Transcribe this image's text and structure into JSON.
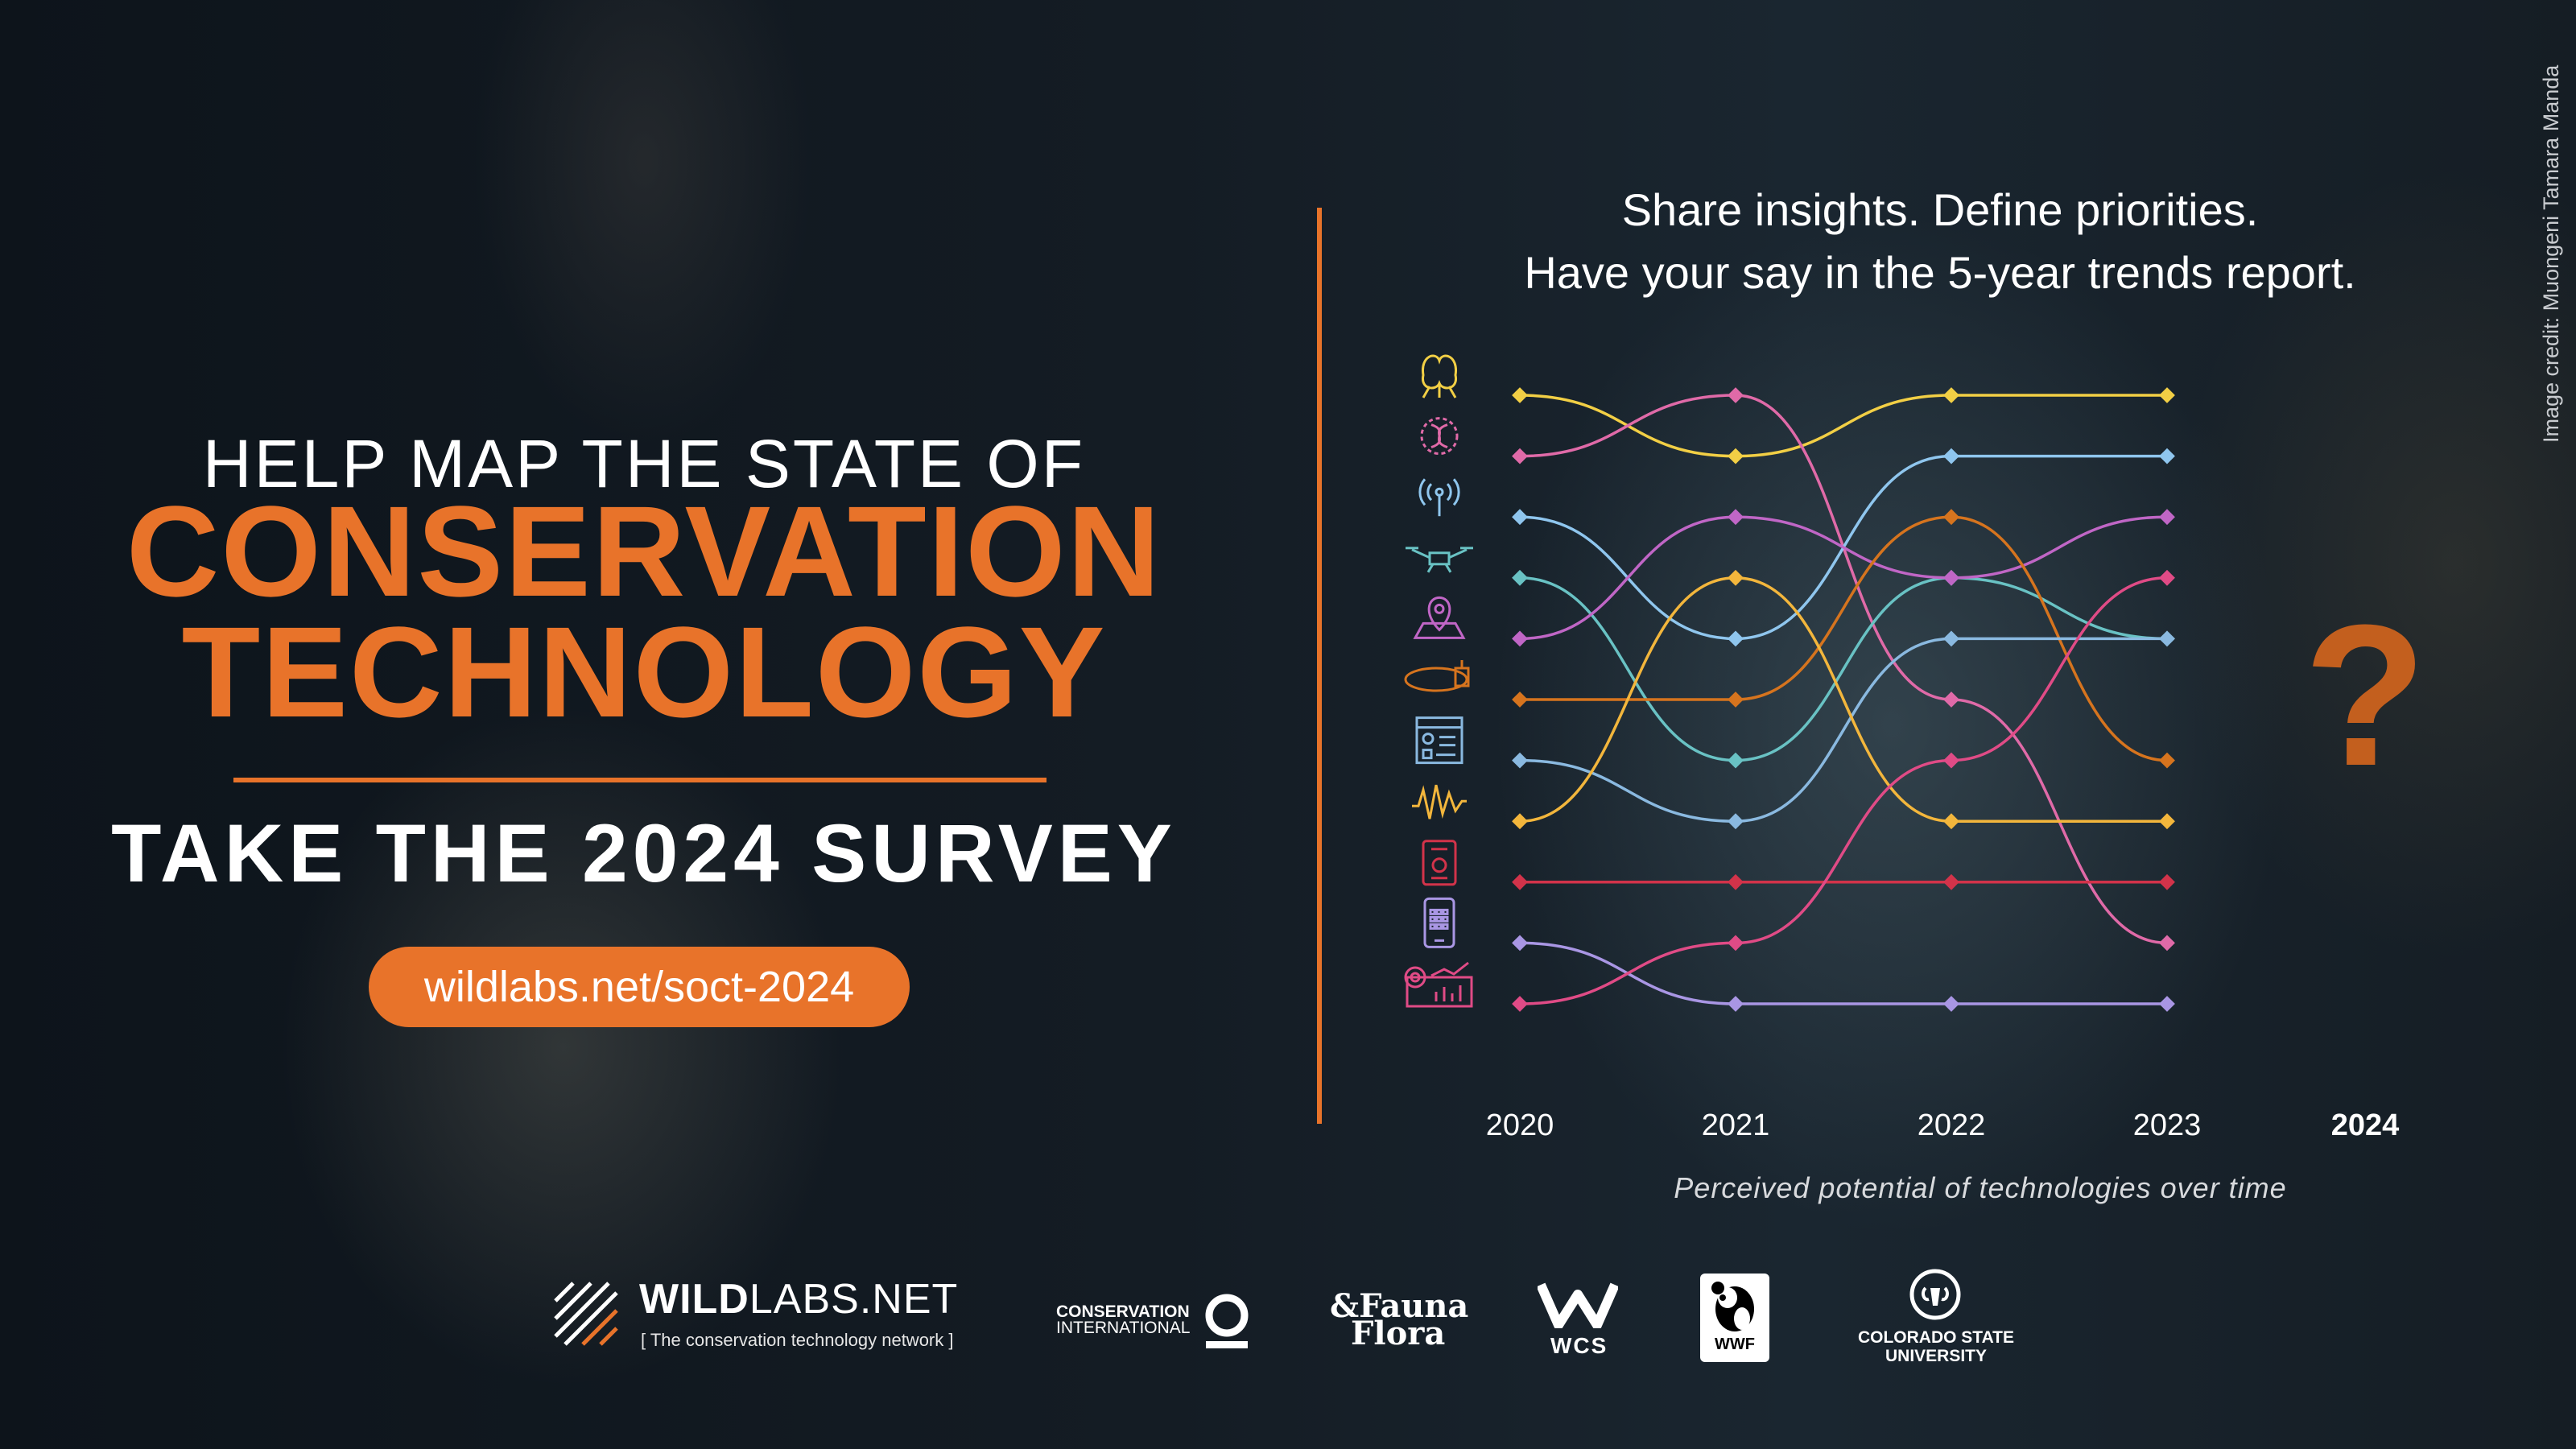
{
  "headline": {
    "line1": "HELP MAP THE STATE OF",
    "line2": "CONSERVATION",
    "line3": "TECHNOLOGY",
    "cta": "TAKE THE 2024 SURVEY",
    "url": "wildlabs.net/soct-2024"
  },
  "tagline": {
    "line1": "Share insights. Define priorities.",
    "line2": "Have your say in the 5-year trends report."
  },
  "image_credit": "Image credit: Muongeni Tamara Manda",
  "chart_data": {
    "type": "line",
    "x": [
      "2020",
      "2021",
      "2022",
      "2023",
      "2024"
    ],
    "rank_axis": "1 (top) to 11 (bottom)",
    "future_marker": "?",
    "caption": "Perceived potential of technologies over time",
    "series": [
      {
        "icon": "ai-brain-icon",
        "color": "#f2cf45",
        "ranks": [
          1,
          2,
          1,
          1
        ]
      },
      {
        "icon": "dna-icon",
        "color": "#e06aa8",
        "ranks": [
          2,
          1,
          6,
          10
        ]
      },
      {
        "icon": "wireless-sensor-icon",
        "color": "#8fc6ee",
        "ranks": [
          3,
          5,
          2,
          2
        ]
      },
      {
        "icon": "drone-icon",
        "color": "#69c2c4",
        "ranks": [
          4,
          7,
          4,
          5
        ]
      },
      {
        "icon": "map-pin-icon",
        "color": "#c066c6",
        "ranks": [
          5,
          3,
          4,
          3
        ]
      },
      {
        "icon": "tracking-collar-icon",
        "color": "#d6741e",
        "ranks": [
          6,
          6,
          3,
          7
        ]
      },
      {
        "icon": "dashboard-icon",
        "color": "#8ab9e0",
        "ranks": [
          7,
          8,
          5,
          5
        ]
      },
      {
        "icon": "acoustic-wave-icon",
        "color": "#f3b63c",
        "ranks": [
          8,
          4,
          8,
          8
        ]
      },
      {
        "icon": "camera-trap-icon",
        "color": "#d2334a",
        "ranks": [
          9,
          9,
          9,
          9
        ]
      },
      {
        "icon": "smartphone-icon",
        "color": "#a996e4",
        "ranks": [
          10,
          11,
          11,
          11
        ]
      },
      {
        "icon": "data-analytics-icon",
        "color": "#e04b86",
        "ranks": [
          11,
          10,
          7,
          4
        ]
      }
    ]
  },
  "logos": {
    "wildlabs_bold": "WILD",
    "wildlabs_rest": "LABS.NET",
    "wildlabs_sub": "[ The conservation technology network ]",
    "ci_line1": "CONSERVATION",
    "ci_line2": "INTERNATIONAL",
    "ff_line1": "&Fauna",
    "ff_line2": "Flora",
    "wcs": "WCS",
    "wwf": "WWF",
    "csu_line1": "COLORADO STATE",
    "csu_line2": "UNIVERSITY"
  }
}
